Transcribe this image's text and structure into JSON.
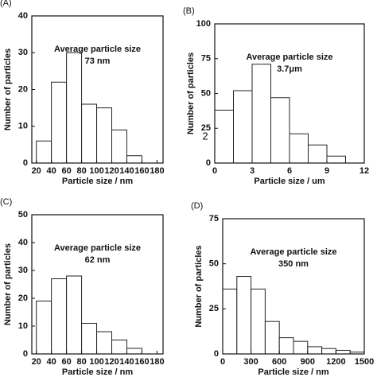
{
  "chart_data": [
    {
      "type": "histogram",
      "panel_label": "(A)",
      "annotation": [
        "Average particle size",
        "73 nm"
      ],
      "bins": [
        20,
        40,
        60,
        80,
        100,
        120,
        140,
        160
      ],
      "counts": [
        6,
        22,
        30,
        16,
        15,
        9,
        2
      ],
      "xlim": [
        14,
        188
      ],
      "xticks": [
        20,
        40,
        60,
        80,
        100,
        120,
        140,
        160,
        180
      ],
      "ylim": [
        0,
        40
      ],
      "yticks": [
        0,
        10,
        20,
        30,
        40
      ],
      "xlabel": "Particle size / nm",
      "ylabel": "Number of particles"
    },
    {
      "type": "histogram",
      "panel_label": "(B)",
      "annotation": [
        "Average particle size",
        "3.7μm"
      ],
      "stray_label": "2",
      "bins": [
        0,
        1.5,
        3,
        4.5,
        6,
        7.5,
        9,
        10.5
      ],
      "counts": [
        38,
        52,
        71,
        47,
        21,
        13,
        5
      ],
      "xlim": [
        0,
        12
      ],
      "xticks": [
        0,
        3,
        6,
        9,
        12
      ],
      "ylim": [
        0,
        100
      ],
      "yticks": [
        0,
        25,
        50,
        75,
        100
      ],
      "xlabel": "Particle size / um",
      "ylabel": "Number of particles"
    },
    {
      "type": "histogram",
      "panel_label": "(C)",
      "annotation": [
        "Average particle size",
        "62 nm"
      ],
      "bins": [
        20,
        40,
        60,
        80,
        100,
        120,
        140,
        160
      ],
      "counts": [
        19,
        27,
        28,
        11,
        8,
        5,
        2
      ],
      "xlim": [
        14,
        188
      ],
      "xticks": [
        20,
        40,
        60,
        80,
        100,
        120,
        140,
        160,
        180
      ],
      "ylim": [
        0,
        50
      ],
      "yticks": [
        0,
        10,
        20,
        30,
        40,
        50
      ],
      "xlabel": "Particle size / nm",
      "ylabel": "Number of particles"
    },
    {
      "type": "histogram",
      "panel_label": "(D)",
      "annotation": [
        "Average particle size",
        "350 nm"
      ],
      "bins": [
        0,
        150,
        300,
        450,
        600,
        750,
        900,
        1050,
        1200,
        1350,
        1500
      ],
      "counts": [
        36,
        43,
        36,
        18,
        9,
        7,
        4,
        3,
        2,
        1
      ],
      "xlim": [
        0,
        1500
      ],
      "xticks": [
        0,
        300,
        600,
        900,
        1200,
        1500
      ],
      "ylim": [
        0,
        75
      ],
      "yticks": [
        0,
        25,
        50,
        75
      ],
      "xlabel": "Particle size / nm",
      "ylabel": "Number of particles"
    }
  ]
}
